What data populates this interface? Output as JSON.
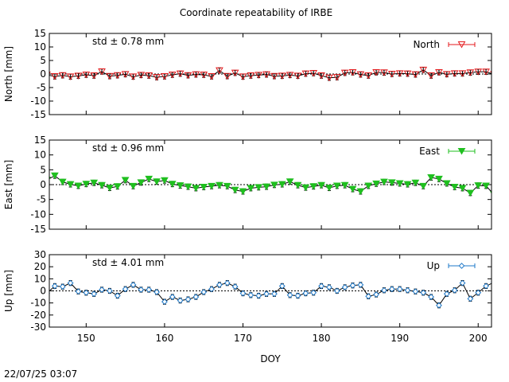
{
  "title": "Coordinate repeatability of IRBE",
  "timestamp": "22/07/25 03:07",
  "chart_data": [
    {
      "type": "line",
      "name": "north",
      "series_label": "North",
      "ylabel": "North [mm]",
      "std_label": "std ± 0.78 mm",
      "color": "#e41a1c",
      "marker": "triangle-down-open",
      "ylim": [
        -15,
        15
      ],
      "yticks": [
        "15",
        "10",
        "5",
        "0",
        "-5",
        "-10",
        "-15"
      ],
      "ytick_values": [
        15,
        10,
        5,
        0,
        -5,
        -10,
        -15
      ],
      "xlim": [
        145.3,
        201.7
      ],
      "x": [
        145,
        146,
        147,
        148,
        149,
        150,
        151,
        152,
        153,
        154,
        155,
        156,
        157,
        158,
        159,
        160,
        161,
        162,
        163,
        164,
        165,
        166,
        167,
        168,
        169,
        170,
        171,
        172,
        173,
        174,
        175,
        176,
        177,
        178,
        179,
        180,
        181,
        182,
        183,
        184,
        185,
        186,
        187,
        188,
        189,
        190,
        191,
        192,
        193,
        194,
        195,
        196,
        197,
        198,
        199,
        200,
        201,
        202
      ],
      "y": [
        -0.3,
        -0.9,
        -0.5,
        -1.0,
        -0.7,
        -0.3,
        -0.6,
        0.9,
        -0.8,
        -0.5,
        -0.1,
        -1.0,
        -0.4,
        -0.6,
        -1.2,
        -0.9,
        -0.3,
        0.1,
        -0.5,
        -0.2,
        -0.3,
        -0.9,
        1.3,
        -0.8,
        0.4,
        -1.0,
        -0.6,
        -0.4,
        -0.2,
        -0.8,
        -0.7,
        -0.4,
        -0.7,
        0.1,
        0.3,
        -0.6,
        -1.4,
        -1.2,
        0.4,
        0.6,
        -0.2,
        -0.6,
        0.6,
        0.5,
        0.0,
        0.2,
        0.1,
        -0.2,
        1.5,
        -0.6,
        0.6,
        -0.1,
        0.2,
        0.2,
        0.5,
        0.8,
        0.8,
        -0.1
      ]
    },
    {
      "type": "line",
      "name": "east",
      "series_label": "East",
      "ylabel": "East [mm]",
      "std_label": "std ± 0.96 mm",
      "color": "#1fbf1f",
      "marker": "triangle-down-filled",
      "ylim": [
        -15,
        15
      ],
      "yticks": [
        "15",
        "10",
        "5",
        "0",
        "-5",
        "-10",
        "-15"
      ],
      "ytick_values": [
        15,
        10,
        5,
        0,
        -5,
        -10,
        -15
      ],
      "xlim": [
        145.3,
        201.7
      ],
      "x": [
        145,
        146,
        147,
        148,
        149,
        150,
        151,
        152,
        153,
        154,
        155,
        156,
        157,
        158,
        159,
        160,
        161,
        162,
        163,
        164,
        165,
        166,
        167,
        168,
        169,
        170,
        171,
        172,
        173,
        174,
        175,
        176,
        177,
        178,
        179,
        180,
        181,
        182,
        183,
        184,
        185,
        186,
        187,
        188,
        189,
        190,
        191,
        192,
        193,
        194,
        195,
        196,
        197,
        198,
        199,
        200,
        201,
        202
      ],
      "y": [
        1.6,
        3.0,
        0.9,
        0.1,
        -0.4,
        0.2,
        0.6,
        -0.2,
        -1.1,
        -0.6,
        1.5,
        -0.5,
        0.7,
        1.9,
        1.0,
        1.4,
        0.2,
        -0.3,
        -0.7,
        -1.2,
        -0.8,
        -0.5,
        -0.2,
        -0.5,
        -1.8,
        -2.3,
        -1.2,
        -0.9,
        -0.7,
        -0.1,
        0.1,
        1.0,
        -0.2,
        -1.0,
        -0.6,
        -0.2,
        -1.1,
        -0.4,
        -0.2,
        -1.5,
        -2.3,
        -0.4,
        0.3,
        0.9,
        0.7,
        0.4,
        0.1,
        0.6,
        -0.5,
        2.4,
        1.9,
        0.4,
        -0.8,
        -1.2,
        -2.8,
        -0.3,
        -0.4,
        -3.3
      ]
    },
    {
      "type": "line",
      "name": "up",
      "series_label": "Up",
      "ylabel": "Up [mm]",
      "std_label": "std ± 4.01 mm",
      "color": "#1e78c8",
      "marker": "diamond-open",
      "ylim": [
        -30,
        30
      ],
      "yticks": [
        "30",
        "20",
        "10",
        "0",
        "-10",
        "-20",
        "-30"
      ],
      "ytick_values": [
        30,
        20,
        10,
        0,
        -10,
        -20,
        -30
      ],
      "xlabel": "DOY",
      "xticks": [
        "150",
        "160",
        "170",
        "180",
        "190",
        "200"
      ],
      "xtick_values": [
        150,
        160,
        170,
        180,
        190,
        200
      ],
      "xlim": [
        145.3,
        201.7
      ],
      "x": [
        145,
        146,
        147,
        148,
        149,
        150,
        151,
        152,
        153,
        154,
        155,
        156,
        157,
        158,
        159,
        160,
        161,
        162,
        163,
        164,
        165,
        166,
        167,
        168,
        169,
        170,
        171,
        172,
        173,
        174,
        175,
        176,
        177,
        178,
        179,
        180,
        181,
        182,
        183,
        184,
        185,
        186,
        187,
        188,
        189,
        190,
        191,
        192,
        193,
        194,
        195,
        196,
        197,
        198,
        199,
        200,
        201,
        202
      ],
      "y": [
        -2.0,
        4.0,
        3.5,
        6.5,
        -0.5,
        -1.5,
        -2.5,
        1.0,
        0.0,
        -4.0,
        1.5,
        5.0,
        1.0,
        1.0,
        -1.0,
        -9.0,
        -5.0,
        -8.0,
        -7.0,
        -5.0,
        -1.0,
        1.5,
        5.0,
        6.5,
        3.5,
        -2.0,
        -3.5,
        -4.0,
        -2.5,
        -2.5,
        4.0,
        -3.5,
        -4.0,
        -2.0,
        -1.5,
        4.0,
        3.0,
        0.0,
        3.0,
        4.5,
        5.0,
        -4.5,
        -3.0,
        0.5,
        1.5,
        1.5,
        0.5,
        -0.5,
        -1.5,
        -5.0,
        -12.0,
        -2.5,
        0.5,
        6.5,
        -6.5,
        -1.5,
        4.0,
        7.0
      ]
    }
  ]
}
